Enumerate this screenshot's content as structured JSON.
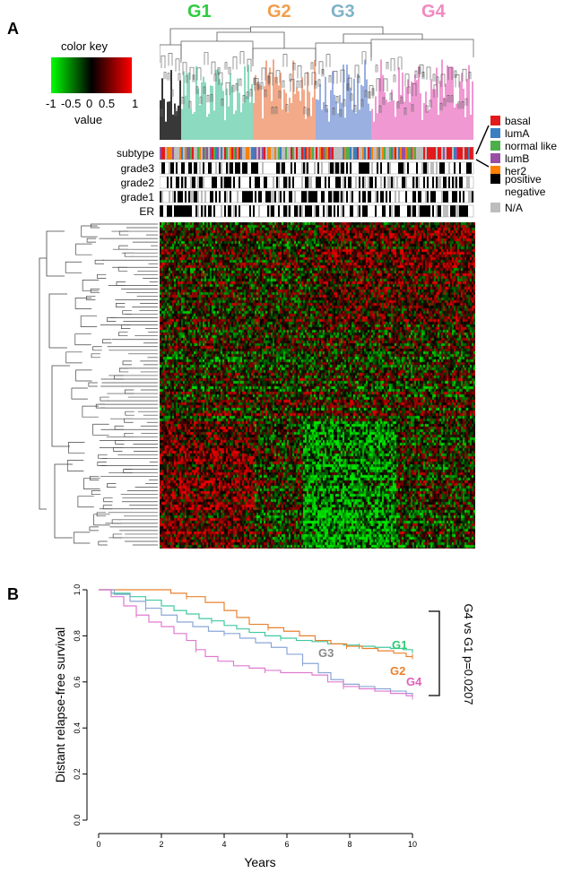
{
  "figure": {
    "panel_a": {
      "label": "A",
      "groups": [
        {
          "name": "G1",
          "color": "#2ecc40",
          "branch_color": "#7fd6b8"
        },
        {
          "name": "G2",
          "color": "#f29d4b",
          "branch_color": "#f2a07c"
        },
        {
          "name": "G3",
          "color": "#7fb3c9",
          "branch_color": "#8fa8dc"
        },
        {
          "name": "G4",
          "color": "#f08ac0",
          "branch_color": "#ee8ccd"
        }
      ],
      "color_key": {
        "title": "color key",
        "ticks": [
          "-1",
          "-0.5",
          "0",
          "0.5",
          "1"
        ],
        "value_label": "value",
        "low_color": "#00ff00",
        "mid_color": "#000000",
        "high_color": "#ff0000"
      },
      "tracks": [
        "subtype",
        "grade3",
        "grade2",
        "grade1",
        "ER"
      ],
      "subtype_legend": [
        {
          "label": "basal",
          "color": "#e31a1c"
        },
        {
          "label": "lumA",
          "color": "#3a7fc1"
        },
        {
          "label": "normal like",
          "color": "#4daf4a"
        },
        {
          "label": "lumB",
          "color": "#984ea3"
        },
        {
          "label": "her2",
          "color": "#ff7f00"
        }
      ],
      "binary_legend": [
        {
          "label": "positive",
          "color": "#000000"
        },
        {
          "label": "negative",
          "color": "#ffffff"
        },
        {
          "label": "N/A",
          "color": "#bdbdbd"
        }
      ]
    },
    "panel_b": {
      "label": "B",
      "chart_data": {
        "type": "line",
        "title": "",
        "xlabel": "Years",
        "ylabel": "Distant relapse-free survival",
        "xlim": [
          0,
          10
        ],
        "ylim": [
          0,
          1
        ],
        "xticks": [
          "0",
          "2",
          "4",
          "6",
          "8",
          "10"
        ],
        "yticks": [
          "0.0",
          "0.2",
          "0.4",
          "0.6",
          "0.8",
          "1.0"
        ],
        "grid": false,
        "series": [
          {
            "name": "G1",
            "color": "#41c9a0",
            "label_color": "#2ecc71",
            "x": [
              0,
              0.4,
              1.0,
              1.5,
              2.0,
              2.4,
              2.8,
              3.2,
              3.6,
              4.0,
              4.4,
              4.8,
              5.3,
              5.8,
              6.3,
              6.8,
              7.3,
              7.8,
              8.3,
              8.8,
              9.3,
              9.7,
              10.0
            ],
            "y": [
              1.0,
              0.985,
              0.97,
              0.955,
              0.93,
              0.91,
              0.895,
              0.875,
              0.865,
              0.845,
              0.83,
              0.815,
              0.8,
              0.79,
              0.78,
              0.775,
              0.765,
              0.76,
              0.755,
              0.75,
              0.745,
              0.74,
              0.725
            ]
          },
          {
            "name": "G2",
            "color": "#e8822f",
            "label_color": "#e8822f",
            "x": [
              0,
              1.0,
              2.3,
              2.8,
              3.4,
              4.0,
              4.4,
              4.8,
              5.4,
              5.9,
              6.4,
              6.9,
              7.4,
              7.9,
              8.4,
              8.9,
              9.4,
              9.8,
              10.0
            ],
            "y": [
              1.0,
              1.0,
              0.985,
              0.97,
              0.945,
              0.91,
              0.88,
              0.85,
              0.835,
              0.82,
              0.8,
              0.78,
              0.765,
              0.755,
              0.745,
              0.735,
              0.725,
              0.71,
              0.71
            ]
          },
          {
            "name": "G3",
            "color": "#8aa6d6",
            "label_color": "#888888",
            "x": [
              0,
              0.5,
              1.0,
              1.5,
              2.0,
              2.5,
              3.0,
              3.5,
              4.0,
              4.5,
              5.0,
              5.5,
              6.0,
              6.5,
              7.0,
              7.4,
              7.8,
              8.3,
              8.8,
              9.3,
              9.8,
              10.0
            ],
            "y": [
              1.0,
              0.98,
              0.95,
              0.92,
              0.89,
              0.86,
              0.84,
              0.82,
              0.81,
              0.79,
              0.77,
              0.75,
              0.72,
              0.68,
              0.64,
              0.61,
              0.59,
              0.58,
              0.57,
              0.56,
              0.55,
              0.54
            ]
          },
          {
            "name": "G4",
            "color": "#e07ad0",
            "label_color": "#e060b8",
            "x": [
              0,
              0.4,
              0.8,
              1.2,
              1.6,
              2.0,
              2.4,
              2.8,
              3.1,
              3.4,
              3.8,
              4.3,
              4.8,
              5.3,
              5.8,
              6.3,
              6.8,
              7.3,
              7.8,
              8.3,
              8.8,
              9.3,
              9.8,
              10.0
            ],
            "y": [
              1.0,
              0.97,
              0.93,
              0.89,
              0.86,
              0.84,
              0.81,
              0.78,
              0.74,
              0.71,
              0.69,
              0.67,
              0.66,
              0.65,
              0.64,
              0.64,
              0.63,
              0.6,
              0.58,
              0.57,
              0.56,
              0.55,
              0.54,
              0.535
            ]
          }
        ],
        "annotations": [
          {
            "text": "G4 vs G1 p=0.0207"
          }
        ]
      }
    }
  }
}
